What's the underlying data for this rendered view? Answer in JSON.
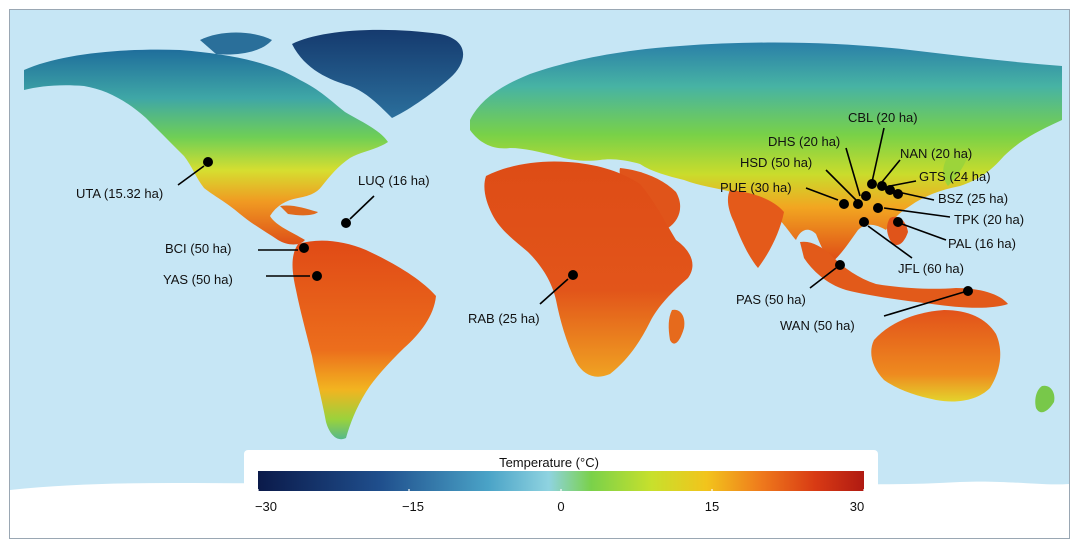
{
  "legend": {
    "title": "Temperature (°C)",
    "ticks": [
      "−30",
      "−15",
      "0",
      "15",
      "30"
    ],
    "colors": [
      "#0b1a4a",
      "#1f4e8c",
      "#4aa3c7",
      "#8fd3e0",
      "#7ad14a",
      "#c8e02c",
      "#f2c41c",
      "#ef7a1c",
      "#d83a14",
      "#b01a12"
    ]
  },
  "colors": {
    "ocean": "#c6e6f5",
    "ice": "#ffffff",
    "marker": "#000000"
  },
  "sites": [
    {
      "label": "UTA (15.32 ha)"
    },
    {
      "label": "LUQ (16 ha)"
    },
    {
      "label": "BCI (50 ha)"
    },
    {
      "label": "YAS (50 ha)"
    },
    {
      "label": "RAB (25 ha)"
    },
    {
      "label": "CBL (20 ha)"
    },
    {
      "label": "DHS (20 ha)"
    },
    {
      "label": "NAN (20 ha)"
    },
    {
      "label": "HSD (50 ha)"
    },
    {
      "label": "GTS (24 ha)"
    },
    {
      "label": "PUE (30 ha)"
    },
    {
      "label": "BSZ (25 ha)"
    },
    {
      "label": "TPK (20 ha)"
    },
    {
      "label": "PAL (16 ha)"
    },
    {
      "label": "JFL (60 ha)"
    },
    {
      "label": "PAS (50 ha)"
    },
    {
      "label": "WAN (50 ha)"
    }
  ]
}
